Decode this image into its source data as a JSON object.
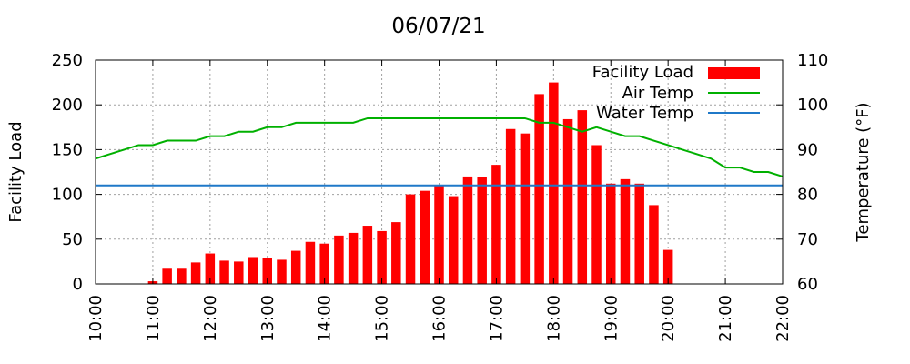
{
  "chart_data": {
    "type": "bar+line",
    "title": "06/07/21",
    "ylabel_left": "Facility Load",
    "ylabel_right": "Temperature (°F)",
    "xlim": [
      "10:00",
      "22:00"
    ],
    "ylim_left": [
      0,
      250
    ],
    "ylim_right": [
      60,
      110
    ],
    "x_ticks": [
      "10:00",
      "11:00",
      "12:00",
      "13:00",
      "14:00",
      "15:00",
      "16:00",
      "17:00",
      "18:00",
      "19:00",
      "20:00",
      "21:00",
      "22:00"
    ],
    "y_ticks_left": [
      "0",
      "50",
      "100",
      "150",
      "200",
      "250"
    ],
    "y_ticks_right": [
      "60",
      "70",
      "80",
      "90",
      "100",
      "110"
    ],
    "grid": true,
    "legend_position": "top-right",
    "colors": {
      "facility_load": "#ff0000",
      "air_temp": "#00b000",
      "water_temp": "#1f78c8"
    },
    "series": [
      {
        "name": "Facility Load",
        "type": "bar",
        "axis": "left",
        "x": [
          "11:00",
          "11:15",
          "11:30",
          "11:45",
          "12:00",
          "12:15",
          "12:30",
          "12:45",
          "13:00",
          "13:15",
          "13:30",
          "13:45",
          "14:00",
          "14:15",
          "14:30",
          "14:45",
          "15:00",
          "15:15",
          "15:30",
          "15:45",
          "16:00",
          "16:15",
          "16:30",
          "16:45",
          "17:00",
          "17:15",
          "17:30",
          "17:45",
          "18:00",
          "18:15",
          "18:30",
          "18:45",
          "19:00",
          "19:15",
          "19:30",
          "19:45",
          "20:00"
        ],
        "values": [
          3,
          17,
          17,
          24,
          34,
          26,
          25,
          30,
          29,
          27,
          37,
          47,
          45,
          54,
          57,
          65,
          59,
          69,
          100,
          104,
          110,
          98,
          120,
          119,
          133,
          173,
          168,
          212,
          225,
          184,
          194,
          155,
          112,
          117,
          112,
          88,
          38
        ]
      },
      {
        "name": "Air Temp",
        "type": "line",
        "axis": "right",
        "x": [
          "10:00",
          "10:15",
          "10:30",
          "10:45",
          "11:00",
          "11:15",
          "11:30",
          "11:45",
          "12:00",
          "12:15",
          "12:30",
          "12:45",
          "13:00",
          "13:15",
          "13:30",
          "13:45",
          "14:00",
          "14:15",
          "14:30",
          "14:45",
          "15:00",
          "15:15",
          "15:30",
          "15:45",
          "16:00",
          "16:15",
          "16:30",
          "16:45",
          "17:00",
          "17:15",
          "17:30",
          "17:45",
          "18:00",
          "18:15",
          "18:30",
          "18:45",
          "19:00",
          "19:15",
          "19:30",
          "19:45",
          "20:00",
          "20:15",
          "20:30",
          "20:45",
          "21:00",
          "21:15",
          "21:30",
          "21:45",
          "22:00"
        ],
        "values": [
          88,
          89,
          90,
          91,
          91,
          92,
          92,
          92,
          93,
          93,
          94,
          94,
          95,
          95,
          96,
          96,
          96,
          96,
          96,
          97,
          97,
          97,
          97,
          97,
          97,
          97,
          97,
          97,
          97,
          97,
          97,
          96,
          96,
          95,
          94,
          95,
          94,
          93,
          93,
          92,
          91,
          90,
          89,
          88,
          86,
          86,
          85,
          85,
          84
        ]
      },
      {
        "name": "Water Temp",
        "type": "line",
        "axis": "right",
        "x": [
          "10:00",
          "22:00"
        ],
        "values": [
          82,
          82
        ]
      }
    ]
  }
}
